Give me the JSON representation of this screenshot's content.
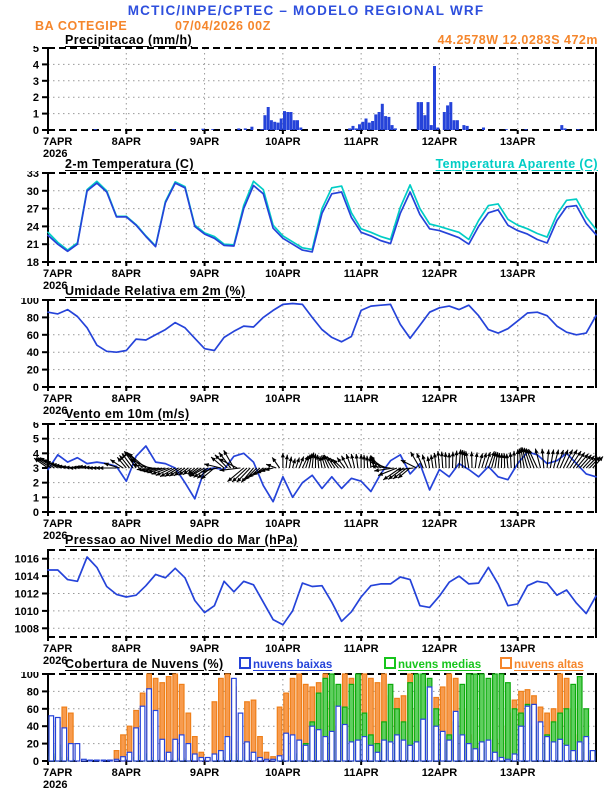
{
  "header": {
    "title": "MCTIC/INPE/CPTEC – MODELO REGIONAL WRF",
    "station": "BA COTEGIPE",
    "run": "07/04/2026 00Z",
    "coords": "44.2578W 12.0283S 472m"
  },
  "xaxis": {
    "days": [
      "7APR",
      "8APR",
      "9APR",
      "10APR",
      "11APR",
      "12APR",
      "13APR"
    ],
    "year": "2026",
    "hours_total": 168
  },
  "colors": {
    "header_blue": "#2e4fdd",
    "orange": "#f5862c",
    "cyan": "#00cdc5",
    "green": "#17c51c",
    "data_blue": "#2543d9",
    "cloud_green_fill": "#5ecf5e",
    "cloud_green_edge": "#0caa0c",
    "cloud_orange_fill": "#f79b4e",
    "cloud_orange_edge": "#ef7f19",
    "grid": "#999999",
    "axis": "#000000"
  },
  "chart_data": [
    {
      "id": "precip",
      "type": "bar",
      "title": "Precipitacao (mm/h)",
      "ylim": [
        0,
        5
      ],
      "yticks": [
        0,
        1,
        2,
        3,
        4,
        5
      ],
      "x_unit": "hours since 7APR2026 00Z",
      "bars_hour_value": [
        [
          14,
          0.05
        ],
        [
          38,
          0.05
        ],
        [
          47,
          0.08
        ],
        [
          50,
          0.05
        ],
        [
          58,
          0.1
        ],
        [
          60,
          0.1
        ],
        [
          62,
          0.2
        ],
        [
          65,
          0.05
        ],
        [
          66,
          0.9
        ],
        [
          67,
          1.4
        ],
        [
          68,
          0.6
        ],
        [
          69,
          0.5
        ],
        [
          70,
          0.45
        ],
        [
          71,
          0.7
        ],
        [
          72,
          1.15
        ],
        [
          73,
          1.1
        ],
        [
          74,
          1.1
        ],
        [
          75,
          0.6
        ],
        [
          76,
          0.6
        ],
        [
          77,
          0.15
        ],
        [
          92,
          0.1
        ],
        [
          93,
          0.25
        ],
        [
          94,
          0.1
        ],
        [
          95,
          0.35
        ],
        [
          96,
          0.5
        ],
        [
          97,
          0.7
        ],
        [
          98,
          0.45
        ],
        [
          99,
          0.55
        ],
        [
          100,
          0.95
        ],
        [
          101,
          1.1
        ],
        [
          102,
          1.6
        ],
        [
          103,
          0.85
        ],
        [
          104,
          0.8
        ],
        [
          105,
          0.3
        ],
        [
          106,
          0.1
        ],
        [
          113,
          1.7
        ],
        [
          114,
          1.7
        ],
        [
          115,
          0.9
        ],
        [
          116,
          1.7
        ],
        [
          117,
          0.3
        ],
        [
          118,
          3.9
        ],
        [
          119,
          0.15
        ],
        [
          121,
          1.1
        ],
        [
          122,
          1.5
        ],
        [
          123,
          1.7
        ],
        [
          124,
          0.6
        ],
        [
          125,
          0.6
        ],
        [
          127,
          0.3
        ],
        [
          128,
          0.25
        ],
        [
          133,
          0.15
        ],
        [
          140,
          0.05
        ],
        [
          146,
          0.05
        ],
        [
          157,
          0.3
        ],
        [
          158,
          0.1
        ],
        [
          162,
          0.05
        ]
      ]
    },
    {
      "id": "temp",
      "type": "line",
      "title": "2-m Temperatura (C)",
      "legend": "Temperatura Aparente (C)",
      "ylim": [
        18,
        33
      ],
      "yticks": [
        18,
        21,
        24,
        27,
        30,
        33
      ],
      "sample_step_hours": 3,
      "series": [
        {
          "name": "Temperatura Aparente (C)",
          "color_key": "cyan",
          "values": [
            23.0,
            21.3,
            20.0,
            21.2,
            30.2,
            31.6,
            30.0,
            25.7,
            25.7,
            24.3,
            22.4,
            20.7,
            28.2,
            31.5,
            30.7,
            24.2,
            22.9,
            22.3,
            21.0,
            20.9,
            27.5,
            31.6,
            30.2,
            24.2,
            22.4,
            21.4,
            20.4,
            20.1,
            27.0,
            30.5,
            30.8,
            26.3,
            23.6,
            23.0,
            22.3,
            21.8,
            27.2,
            31.0,
            27.0,
            24.4,
            24.0,
            23.5,
            23.0,
            21.8,
            25.0,
            27.5,
            27.8,
            25.2,
            24.2,
            23.6,
            22.8,
            22.2,
            26.0,
            28.4,
            28.6,
            25.6,
            23.5
          ]
        },
        {
          "name": "2-m Temperatura (C)",
          "color_key": "data_blue",
          "values": [
            22.5,
            21.0,
            19.8,
            21.0,
            30.0,
            31.3,
            29.8,
            25.6,
            25.6,
            24.2,
            22.3,
            20.6,
            28.0,
            31.3,
            30.5,
            24.0,
            22.7,
            22.0,
            20.8,
            20.7,
            27.0,
            30.9,
            29.5,
            23.7,
            22.0,
            21.0,
            20.0,
            19.7,
            26.2,
            29.5,
            29.8,
            25.5,
            23.0,
            22.4,
            21.6,
            21.1,
            26.2,
            29.8,
            26.0,
            23.6,
            23.3,
            22.7,
            22.1,
            21.0,
            24.0,
            26.3,
            26.8,
            24.2,
            23.3,
            22.7,
            21.8,
            21.2,
            25.0,
            27.3,
            27.5,
            24.5,
            22.6
          ]
        }
      ]
    },
    {
      "id": "rh",
      "type": "line",
      "title": "Umidade Relativa em 2m (%)",
      "ylim": [
        0,
        100
      ],
      "yticks": [
        0,
        20,
        40,
        60,
        80,
        100
      ],
      "sample_step_hours": 3,
      "series": [
        {
          "name": "Umidade Relativa em 2m (%)",
          "color_key": "data_blue",
          "values": [
            86,
            84,
            89,
            81,
            68,
            48,
            41,
            40,
            42,
            55,
            54,
            60,
            66,
            74,
            68,
            56,
            44,
            42,
            57,
            64,
            70,
            69,
            80,
            88,
            95,
            96,
            95,
            80,
            66,
            57,
            52,
            58,
            88,
            93,
            94,
            95,
            72,
            56,
            71,
            86,
            91,
            93,
            89,
            94,
            82,
            66,
            62,
            67,
            76,
            85,
            86,
            82,
            70,
            63,
            60,
            62,
            82
          ]
        }
      ]
    },
    {
      "id": "wind",
      "type": "line+vectors",
      "title": "Vento em 10m (m/s)",
      "ylim": [
        0,
        6
      ],
      "yticks": [
        0,
        1,
        2,
        3,
        4,
        5,
        6
      ],
      "sample_step_hours": 3,
      "series": [
        {
          "name": "Vento em 10m (m/s)",
          "color_key": "data_blue",
          "values": [
            2.9,
            3.9,
            3.4,
            3.7,
            3.3,
            3.4,
            3.3,
            3.1,
            2.1,
            3.8,
            4.5,
            3.4,
            3.3,
            3.0,
            2.0,
            0.9,
            2.9,
            3.0,
            2.9,
            3.8,
            4.0,
            3.4,
            1.8,
            0.7,
            2.4,
            1.0,
            2.0,
            2.5,
            1.6,
            2.4,
            1.6,
            2.3,
            2.1,
            1.4,
            2.6,
            3.5,
            3.9,
            2.6,
            3.3,
            1.5,
            2.9,
            2.4,
            3.3,
            2.9,
            2.4,
            3.1,
            2.4,
            2.2,
            3.3,
            4.1,
            3.9,
            3.3,
            3.5,
            4.0,
            3.3,
            2.6,
            2.4
          ]
        }
      ],
      "vectors": {
        "anchor_value": 3,
        "dirs_deg_ccw_from_east": [
          145,
          150,
          165,
          175,
          180,
          175,
          180,
          180,
          130,
          125,
          140,
          185,
          195,
          210,
          215,
          220,
          210,
          220,
          140,
          120,
          220,
          230,
          215,
          195,
          90,
          75,
          65,
          85,
          100,
          120,
          135,
          110,
          90,
          95,
          130,
          175,
          215,
          220,
          120,
          100,
          95,
          90,
          85,
          100,
          75,
          70,
          85,
          95,
          90,
          105,
          115,
          85,
          70,
          60,
          50,
          45,
          50
        ]
      }
    },
    {
      "id": "pres",
      "type": "line",
      "title": "Pressao ao Nivel Medio do Mar (hPa)",
      "ylim": [
        1007,
        1017
      ],
      "yticks": [
        1008,
        1010,
        1012,
        1014,
        1016
      ],
      "sample_step_hours": 3,
      "series": [
        {
          "name": "Pressao ao Nivel Medio do Mar (hPa)",
          "color_key": "data_blue",
          "values": [
            1014.7,
            1014.7,
            1013.6,
            1013.4,
            1016.2,
            1015.0,
            1012.8,
            1011.9,
            1011.6,
            1011.8,
            1012.9,
            1014.2,
            1013.8,
            1014.9,
            1013.8,
            1011.2,
            1009.8,
            1010.6,
            1013.4,
            1012.2,
            1013.4,
            1013.0,
            1011.0,
            1009.0,
            1008.4,
            1010.0,
            1013.2,
            1012.8,
            1012.9,
            1011.0,
            1008.8,
            1009.9,
            1011.6,
            1012.9,
            1013.1,
            1013.1,
            1013.9,
            1013.6,
            1010.6,
            1010.4,
            1011.7,
            1013.3,
            1014.0,
            1013.1,
            1013.2,
            1015.0,
            1013.1,
            1010.6,
            1010.8,
            1012.9,
            1013.4,
            1013.2,
            1011.8,
            1012.4,
            1010.9,
            1009.7,
            1011.7
          ]
        }
      ]
    },
    {
      "id": "cloud",
      "type": "bar",
      "title": "Cobertura de Nuvens (%)",
      "ylim": [
        0,
        100
      ],
      "yticks": [
        0,
        20,
        40,
        60,
        80,
        100
      ],
      "sample_step_hours": 2,
      "series": [
        {
          "name": "nuvens baixas",
          "style": "hollow",
          "color_key": "data_blue",
          "values": [
            52,
            50,
            38,
            20,
            20,
            2,
            0,
            0,
            0,
            0,
            2,
            5,
            10,
            38,
            63,
            83,
            58,
            25,
            10,
            25,
            30,
            20,
            8,
            4,
            4,
            8,
            12,
            28,
            95,
            55,
            22,
            10,
            4,
            2,
            2,
            6,
            32,
            30,
            24,
            18,
            40,
            36,
            28,
            34,
            63,
            42,
            22,
            24,
            28,
            18,
            10,
            24,
            22,
            30,
            24,
            18,
            22,
            48,
            85,
            40,
            34,
            24,
            57,
            30,
            20,
            14,
            22,
            24,
            10,
            4,
            2,
            8,
            40,
            63,
            65,
            45,
            28,
            22,
            25,
            18,
            12,
            22,
            28,
            12
          ]
        },
        {
          "name": "nuvens medias",
          "style": "filled",
          "fill_key": "cloud_green_fill",
          "edge_key": "cloud_green_edge",
          "color_key": "green",
          "values": [
            8,
            18,
            4,
            2,
            0,
            0,
            0,
            0,
            0,
            0,
            0,
            0,
            0,
            4,
            6,
            8,
            4,
            2,
            0,
            2,
            3,
            2,
            0,
            0,
            0,
            2,
            4,
            8,
            8,
            4,
            2,
            0,
            0,
            0,
            0,
            2,
            2,
            5,
            8,
            20,
            45,
            78,
            95,
            100,
            88,
            62,
            88,
            100,
            55,
            30,
            20,
            45,
            88,
            60,
            45,
            90,
            100,
            100,
            95,
            60,
            20,
            30,
            45,
            88,
            100,
            100,
            100,
            95,
            100,
            100,
            90,
            60,
            55,
            65,
            40,
            20,
            30,
            45,
            55,
            60,
            88,
            97,
            60,
            12
          ]
        },
        {
          "name": "nuvens altas",
          "style": "filled",
          "fill_key": "cloud_orange_fill",
          "edge_key": "cloud_orange_edge",
          "color_key": "orange",
          "values": [
            5,
            45,
            62,
            55,
            10,
            0,
            0,
            0,
            0,
            0,
            12,
            30,
            40,
            58,
            78,
            100,
            95,
            90,
            97,
            100,
            88,
            55,
            28,
            10,
            3,
            68,
            95,
            100,
            85,
            22,
            68,
            70,
            28,
            10,
            5,
            62,
            78,
            95,
            100,
            88,
            85,
            90,
            100,
            68,
            40,
            100,
            95,
            70,
            100,
            95,
            90,
            100,
            75,
            72,
            75,
            100,
            60,
            30,
            73,
            73,
            85,
            100,
            95,
            60,
            30,
            20,
            15,
            10,
            25,
            40,
            55,
            70,
            80,
            82,
            75,
            62,
            55,
            60,
            100,
            95,
            60,
            30,
            10,
            5
          ]
        }
      ]
    }
  ]
}
